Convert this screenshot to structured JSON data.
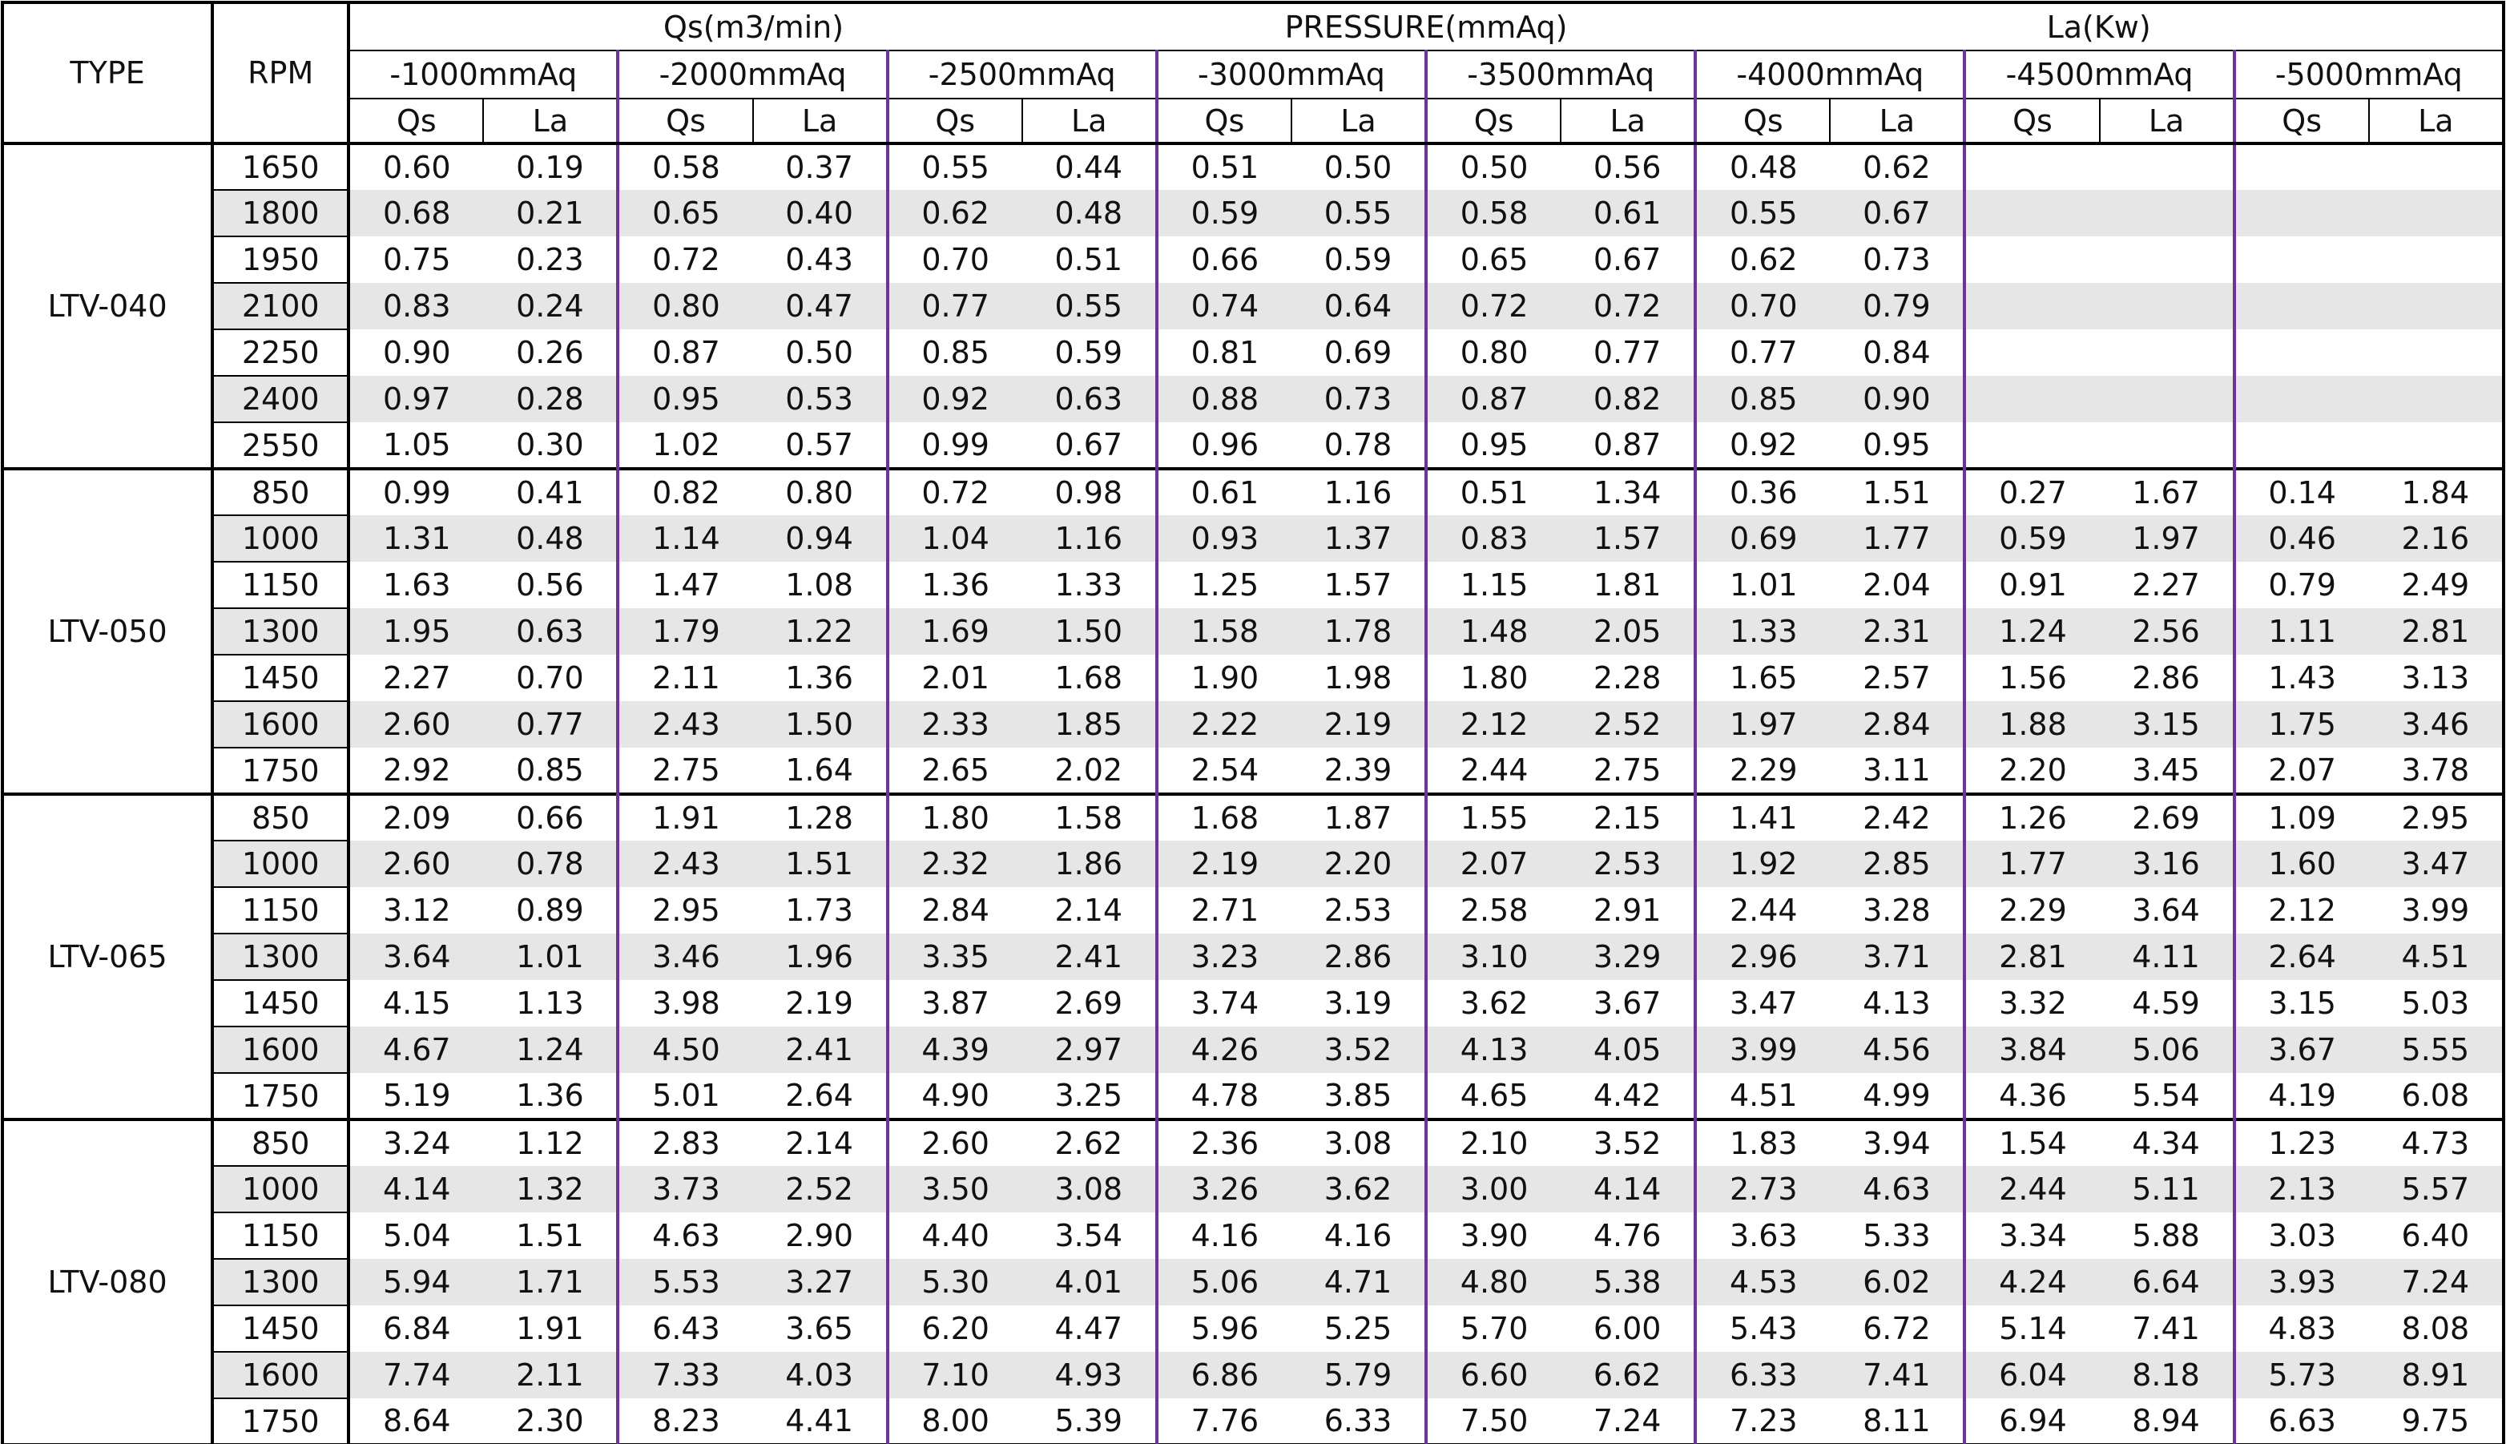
{
  "header": {
    "type": "TYPE",
    "rpm": "RPM",
    "titles": [
      "Qs(m3/min)",
      "PRESSURE(mmAq)",
      "La(Kw)"
    ],
    "pressures": [
      "-1000mmAq",
      "-2000mmAq",
      "-2500mmAq",
      "-3000mmAq",
      "-3500mmAq",
      "-4000mmAq",
      "-4500mmAq",
      "-5000mmAq"
    ],
    "sub": [
      "Qs",
      "La"
    ]
  },
  "groups": [
    {
      "type": "LTV-040",
      "rows": [
        {
          "rpm": "1650",
          "values": [
            "0.60",
            "0.19",
            "0.58",
            "0.37",
            "0.55",
            "0.44",
            "0.51",
            "0.50",
            "0.50",
            "0.56",
            "0.48",
            "0.62"
          ]
        },
        {
          "rpm": "1800",
          "values": [
            "0.68",
            "0.21",
            "0.65",
            "0.40",
            "0.62",
            "0.48",
            "0.59",
            "0.55",
            "0.58",
            "0.61",
            "0.55",
            "0.67"
          ]
        },
        {
          "rpm": "1950",
          "values": [
            "0.75",
            "0.23",
            "0.72",
            "0.43",
            "0.70",
            "0.51",
            "0.66",
            "0.59",
            "0.65",
            "0.67",
            "0.62",
            "0.73"
          ]
        },
        {
          "rpm": "2100",
          "values": [
            "0.83",
            "0.24",
            "0.80",
            "0.47",
            "0.77",
            "0.55",
            "0.74",
            "0.64",
            "0.72",
            "0.72",
            "0.70",
            "0.79"
          ]
        },
        {
          "rpm": "2250",
          "values": [
            "0.90",
            "0.26",
            "0.87",
            "0.50",
            "0.85",
            "0.59",
            "0.81",
            "0.69",
            "0.80",
            "0.77",
            "0.77",
            "0.84"
          ]
        },
        {
          "rpm": "2400",
          "values": [
            "0.97",
            "0.28",
            "0.95",
            "0.53",
            "0.92",
            "0.63",
            "0.88",
            "0.73",
            "0.87",
            "0.82",
            "0.85",
            "0.90"
          ]
        },
        {
          "rpm": "2550",
          "values": [
            "1.05",
            "0.30",
            "1.02",
            "0.57",
            "0.99",
            "0.67",
            "0.96",
            "0.78",
            "0.95",
            "0.87",
            "0.92",
            "0.95"
          ]
        }
      ]
    },
    {
      "type": "LTV-050",
      "rows": [
        {
          "rpm": "850",
          "values": [
            "0.99",
            "0.41",
            "0.82",
            "0.80",
            "0.72",
            "0.98",
            "0.61",
            "1.16",
            "0.51",
            "1.34",
            "0.36",
            "1.51",
            "0.27",
            "1.67",
            "0.14",
            "1.84"
          ]
        },
        {
          "rpm": "1000",
          "values": [
            "1.31",
            "0.48",
            "1.14",
            "0.94",
            "1.04",
            "1.16",
            "0.93",
            "1.37",
            "0.83",
            "1.57",
            "0.69",
            "1.77",
            "0.59",
            "1.97",
            "0.46",
            "2.16"
          ]
        },
        {
          "rpm": "1150",
          "values": [
            "1.63",
            "0.56",
            "1.47",
            "1.08",
            "1.36",
            "1.33",
            "1.25",
            "1.57",
            "1.15",
            "1.81",
            "1.01",
            "2.04",
            "0.91",
            "2.27",
            "0.79",
            "2.49"
          ]
        },
        {
          "rpm": "1300",
          "values": [
            "1.95",
            "0.63",
            "1.79",
            "1.22",
            "1.69",
            "1.50",
            "1.58",
            "1.78",
            "1.48",
            "2.05",
            "1.33",
            "2.31",
            "1.24",
            "2.56",
            "1.11",
            "2.81"
          ]
        },
        {
          "rpm": "1450",
          "values": [
            "2.27",
            "0.70",
            "2.11",
            "1.36",
            "2.01",
            "1.68",
            "1.90",
            "1.98",
            "1.80",
            "2.28",
            "1.65",
            "2.57",
            "1.56",
            "2.86",
            "1.43",
            "3.13"
          ]
        },
        {
          "rpm": "1600",
          "values": [
            "2.60",
            "0.77",
            "2.43",
            "1.50",
            "2.33",
            "1.85",
            "2.22",
            "2.19",
            "2.12",
            "2.52",
            "1.97",
            "2.84",
            "1.88",
            "3.15",
            "1.75",
            "3.46"
          ]
        },
        {
          "rpm": "1750",
          "values": [
            "2.92",
            "0.85",
            "2.75",
            "1.64",
            "2.65",
            "2.02",
            "2.54",
            "2.39",
            "2.44",
            "2.75",
            "2.29",
            "3.11",
            "2.20",
            "3.45",
            "2.07",
            "3.78"
          ]
        }
      ]
    },
    {
      "type": "LTV-065",
      "rows": [
        {
          "rpm": "850",
          "values": [
            "2.09",
            "0.66",
            "1.91",
            "1.28",
            "1.80",
            "1.58",
            "1.68",
            "1.87",
            "1.55",
            "2.15",
            "1.41",
            "2.42",
            "1.26",
            "2.69",
            "1.09",
            "2.95"
          ]
        },
        {
          "rpm": "1000",
          "values": [
            "2.60",
            "0.78",
            "2.43",
            "1.51",
            "2.32",
            "1.86",
            "2.19",
            "2.20",
            "2.07",
            "2.53",
            "1.92",
            "2.85",
            "1.77",
            "3.16",
            "1.60",
            "3.47"
          ]
        },
        {
          "rpm": "1150",
          "values": [
            "3.12",
            "0.89",
            "2.95",
            "1.73",
            "2.84",
            "2.14",
            "2.71",
            "2.53",
            "2.58",
            "2.91",
            "2.44",
            "3.28",
            "2.29",
            "3.64",
            "2.12",
            "3.99"
          ]
        },
        {
          "rpm": "1300",
          "values": [
            "3.64",
            "1.01",
            "3.46",
            "1.96",
            "3.35",
            "2.41",
            "3.23",
            "2.86",
            "3.10",
            "3.29",
            "2.96",
            "3.71",
            "2.81",
            "4.11",
            "2.64",
            "4.51"
          ]
        },
        {
          "rpm": "1450",
          "values": [
            "4.15",
            "1.13",
            "3.98",
            "2.19",
            "3.87",
            "2.69",
            "3.74",
            "3.19",
            "3.62",
            "3.67",
            "3.47",
            "4.13",
            "3.32",
            "4.59",
            "3.15",
            "5.03"
          ]
        },
        {
          "rpm": "1600",
          "values": [
            "4.67",
            "1.24",
            "4.50",
            "2.41",
            "4.39",
            "2.97",
            "4.26",
            "3.52",
            "4.13",
            "4.05",
            "3.99",
            "4.56",
            "3.84",
            "5.06",
            "3.67",
            "5.55"
          ]
        },
        {
          "rpm": "1750",
          "values": [
            "5.19",
            "1.36",
            "5.01",
            "2.64",
            "4.90",
            "3.25",
            "4.78",
            "3.85",
            "4.65",
            "4.42",
            "4.51",
            "4.99",
            "4.36",
            "5.54",
            "4.19",
            "6.08"
          ]
        }
      ]
    },
    {
      "type": "LTV-080",
      "rows": [
        {
          "rpm": "850",
          "values": [
            "3.24",
            "1.12",
            "2.83",
            "2.14",
            "2.60",
            "2.62",
            "2.36",
            "3.08",
            "2.10",
            "3.52",
            "1.83",
            "3.94",
            "1.54",
            "4.34",
            "1.23",
            "4.73"
          ]
        },
        {
          "rpm": "1000",
          "values": [
            "4.14",
            "1.32",
            "3.73",
            "2.52",
            "3.50",
            "3.08",
            "3.26",
            "3.62",
            "3.00",
            "4.14",
            "2.73",
            "4.63",
            "2.44",
            "5.11",
            "2.13",
            "5.57"
          ]
        },
        {
          "rpm": "1150",
          "values": [
            "5.04",
            "1.51",
            "4.63",
            "2.90",
            "4.40",
            "3.54",
            "4.16",
            "4.16",
            "3.90",
            "4.76",
            "3.63",
            "5.33",
            "3.34",
            "5.88",
            "3.03",
            "6.40"
          ]
        },
        {
          "rpm": "1300",
          "values": [
            "5.94",
            "1.71",
            "5.53",
            "3.27",
            "5.30",
            "4.01",
            "5.06",
            "4.71",
            "4.80",
            "5.38",
            "4.53",
            "6.02",
            "4.24",
            "6.64",
            "3.93",
            "7.24"
          ]
        },
        {
          "rpm": "1450",
          "values": [
            "6.84",
            "1.91",
            "6.43",
            "3.65",
            "6.20",
            "4.47",
            "5.96",
            "5.25",
            "5.70",
            "6.00",
            "5.43",
            "6.72",
            "5.14",
            "7.41",
            "4.83",
            "8.08"
          ]
        },
        {
          "rpm": "1600",
          "values": [
            "7.74",
            "2.11",
            "7.33",
            "4.03",
            "7.10",
            "4.93",
            "6.86",
            "5.79",
            "6.60",
            "6.62",
            "6.33",
            "7.41",
            "6.04",
            "8.18",
            "5.73",
            "8.91"
          ]
        },
        {
          "rpm": "1750",
          "values": [
            "8.64",
            "2.30",
            "8.23",
            "4.41",
            "8.00",
            "5.39",
            "7.76",
            "6.33",
            "7.50",
            "7.24",
            "7.23",
            "8.11",
            "6.94",
            "8.94",
            "6.63",
            "9.75"
          ]
        }
      ]
    }
  ]
}
